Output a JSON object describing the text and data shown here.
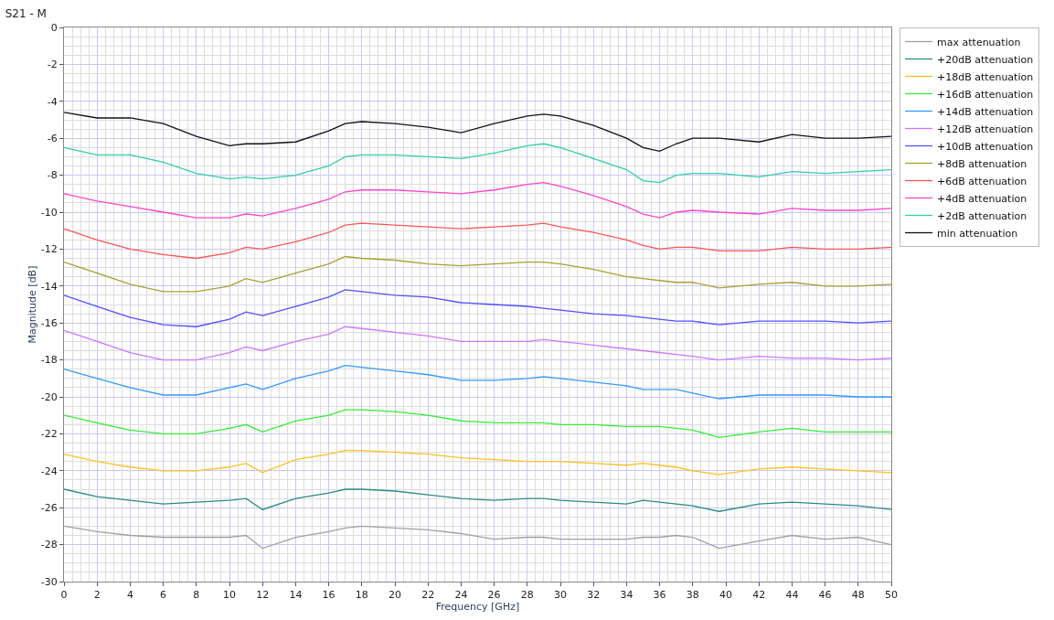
{
  "chart_data": {
    "type": "line",
    "title": "S21 - M",
    "xlabel": "Frequency [GHz]",
    "ylabel": "Magnitude [dB]",
    "x": [
      0,
      2,
      4,
      6,
      8,
      10,
      11,
      12,
      14,
      16,
      17,
      18,
      20,
      22,
      24,
      26,
      28,
      29,
      30,
      32,
      34,
      35,
      36,
      37,
      38,
      39.6,
      42,
      44,
      46,
      48,
      50
    ],
    "series": [
      {
        "name": "max attenuation",
        "color": "#a0a0a0",
        "values": [
          -27.0,
          -27.3,
          -27.5,
          -27.6,
          -27.6,
          -27.6,
          -27.5,
          -28.2,
          -27.6,
          -27.3,
          -27.1,
          -27.0,
          -27.1,
          -27.2,
          -27.4,
          -27.7,
          -27.6,
          -27.6,
          -27.7,
          -27.7,
          -27.7,
          -27.6,
          -27.6,
          -27.5,
          -27.6,
          -28.2,
          -27.8,
          -27.5,
          -27.7,
          -27.6,
          -28.0
        ]
      },
      {
        "name": "+20dB attenuation",
        "color": "#2a8a86",
        "values": [
          -25.0,
          -25.4,
          -25.6,
          -25.8,
          -25.7,
          -25.6,
          -25.5,
          -26.1,
          -25.5,
          -25.2,
          -25.0,
          -25.0,
          -25.1,
          -25.3,
          -25.5,
          -25.6,
          -25.5,
          -25.5,
          -25.6,
          -25.7,
          -25.8,
          -25.6,
          -25.7,
          -25.8,
          -25.9,
          -26.2,
          -25.8,
          -25.7,
          -25.8,
          -25.9,
          -26.1
        ]
      },
      {
        "name": "+18dB attenuation",
        "color": "#ffc020",
        "values": [
          -23.1,
          -23.5,
          -23.8,
          -24.0,
          -24.0,
          -23.8,
          -23.6,
          -24.1,
          -23.4,
          -23.1,
          -22.9,
          -22.9,
          -23.0,
          -23.1,
          -23.3,
          -23.4,
          -23.5,
          -23.5,
          -23.5,
          -23.6,
          -23.7,
          -23.6,
          -23.7,
          -23.8,
          -24.0,
          -24.2,
          -23.9,
          -23.8,
          -23.9,
          -24.0,
          -24.1
        ]
      },
      {
        "name": "+16dB attenuation",
        "color": "#33ee33",
        "values": [
          -21.0,
          -21.4,
          -21.8,
          -22.0,
          -22.0,
          -21.7,
          -21.5,
          -21.9,
          -21.3,
          -21.0,
          -20.7,
          -20.7,
          -20.8,
          -21.0,
          -21.3,
          -21.4,
          -21.4,
          -21.4,
          -21.5,
          -21.5,
          -21.6,
          -21.6,
          -21.6,
          -21.7,
          -21.8,
          -22.2,
          -21.9,
          -21.7,
          -21.9,
          -21.9,
          -21.9
        ]
      },
      {
        "name": "+14dB attenuation",
        "color": "#3399ff",
        "values": [
          -18.5,
          -19.0,
          -19.5,
          -19.9,
          -19.9,
          -19.5,
          -19.3,
          -19.6,
          -19.0,
          -18.6,
          -18.3,
          -18.4,
          -18.6,
          -18.8,
          -19.1,
          -19.1,
          -19.0,
          -18.9,
          -19.0,
          -19.2,
          -19.4,
          -19.6,
          -19.6,
          -19.6,
          -19.8,
          -20.1,
          -19.9,
          -19.9,
          -19.9,
          -20.0,
          -20.0
        ]
      },
      {
        "name": "+12dB attenuation",
        "color": "#cc77ff",
        "values": [
          -16.4,
          -17.0,
          -17.6,
          -18.0,
          -18.0,
          -17.6,
          -17.3,
          -17.5,
          -17.0,
          -16.6,
          -16.2,
          -16.3,
          -16.5,
          -16.7,
          -17.0,
          -17.0,
          -17.0,
          -16.9,
          -17.0,
          -17.2,
          -17.4,
          -17.5,
          -17.6,
          -17.7,
          -17.8,
          -18.0,
          -17.8,
          -17.9,
          -17.9,
          -18.0,
          -17.9
        ]
      },
      {
        "name": "+10dB attenuation",
        "color": "#5050ff",
        "values": [
          -14.5,
          -15.1,
          -15.7,
          -16.1,
          -16.2,
          -15.8,
          -15.4,
          -15.6,
          -15.1,
          -14.6,
          -14.2,
          -14.3,
          -14.5,
          -14.6,
          -14.9,
          -15.0,
          -15.1,
          -15.2,
          -15.3,
          -15.5,
          -15.6,
          -15.7,
          -15.8,
          -15.9,
          -15.9,
          -16.1,
          -15.9,
          -15.9,
          -15.9,
          -16.0,
          -15.9
        ]
      },
      {
        "name": "+8dB attenuation",
        "color": "#a8a030",
        "values": [
          -12.7,
          -13.3,
          -13.9,
          -14.3,
          -14.3,
          -14.0,
          -13.6,
          -13.8,
          -13.3,
          -12.8,
          -12.4,
          -12.5,
          -12.6,
          -12.8,
          -12.9,
          -12.8,
          -12.7,
          -12.7,
          -12.8,
          -13.1,
          -13.5,
          -13.6,
          -13.7,
          -13.8,
          -13.8,
          -14.1,
          -13.9,
          -13.8,
          -14.0,
          -14.0,
          -13.9
        ]
      },
      {
        "name": "+6dB attenuation",
        "color": "#ff5555",
        "values": [
          -10.9,
          -11.5,
          -12.0,
          -12.3,
          -12.5,
          -12.2,
          -11.9,
          -12.0,
          -11.6,
          -11.1,
          -10.7,
          -10.6,
          -10.7,
          -10.8,
          -10.9,
          -10.8,
          -10.7,
          -10.6,
          -10.8,
          -11.1,
          -11.5,
          -11.8,
          -12.0,
          -11.9,
          -11.9,
          -12.1,
          -12.1,
          -11.9,
          -12.0,
          -12.0,
          -11.9
        ]
      },
      {
        "name": "+4dB attenuation",
        "color": "#ff44cc",
        "values": [
          -9.0,
          -9.4,
          -9.7,
          -10.0,
          -10.3,
          -10.3,
          -10.1,
          -10.2,
          -9.8,
          -9.3,
          -8.9,
          -8.8,
          -8.8,
          -8.9,
          -9.0,
          -8.8,
          -8.5,
          -8.4,
          -8.6,
          -9.1,
          -9.7,
          -10.1,
          -10.3,
          -10.0,
          -9.9,
          -10.0,
          -10.1,
          -9.8,
          -9.9,
          -9.9,
          -9.8
        ]
      },
      {
        "name": "+2dB attenuation",
        "color": "#33ccaa",
        "values": [
          -6.5,
          -6.9,
          -6.9,
          -7.3,
          -7.9,
          -8.2,
          -8.1,
          -8.2,
          -8.0,
          -7.5,
          -7.0,
          -6.9,
          -6.9,
          -7.0,
          -7.1,
          -6.8,
          -6.4,
          -6.3,
          -6.5,
          -7.1,
          -7.7,
          -8.3,
          -8.4,
          -8.0,
          -7.9,
          -7.9,
          -8.1,
          -7.8,
          -7.9,
          -7.8,
          -7.7
        ]
      },
      {
        "name": "min attenuation",
        "color": "#111111",
        "values": [
          -4.6,
          -4.9,
          -4.9,
          -5.2,
          -5.9,
          -6.4,
          -6.3,
          -6.3,
          -6.2,
          -5.6,
          -5.2,
          -5.1,
          -5.2,
          -5.4,
          -5.7,
          -5.2,
          -4.8,
          -4.7,
          -4.8,
          -5.3,
          -6.0,
          -6.5,
          -6.7,
          -6.3,
          -6.0,
          -6.0,
          -6.2,
          -5.8,
          -6.0,
          -6.0,
          -5.9
        ]
      }
    ],
    "xlim": [
      0,
      50
    ],
    "xticks": [
      0,
      2,
      4,
      6,
      8,
      10,
      12,
      14,
      16,
      18,
      20,
      22,
      24,
      26,
      28,
      30,
      32,
      34,
      36,
      38,
      40,
      42,
      44,
      46,
      48,
      50
    ],
    "ylim": [
      -30,
      0
    ],
    "yticks": [
      0,
      -2,
      -4,
      -6,
      -8,
      -10,
      -12,
      -14,
      -16,
      -18,
      -20,
      -22,
      -24,
      -26,
      -28,
      -30
    ],
    "grid": true,
    "legend": "top right",
    "line_style": "solid"
  }
}
